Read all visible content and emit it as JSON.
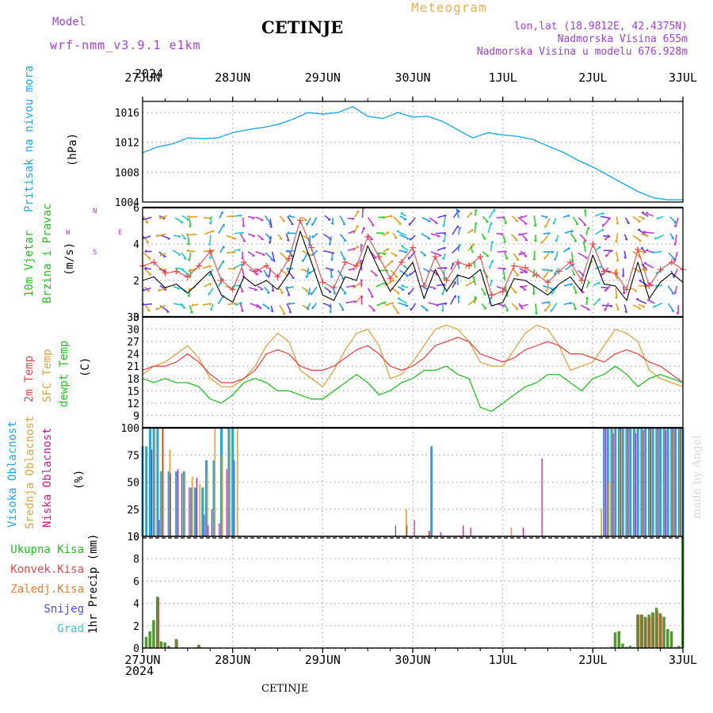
{
  "header": {
    "model_label": "Model",
    "model_name": "wrf-nmm_v3.9.1  e1km",
    "station": "CETINJE",
    "product": "Meteogram",
    "coords": "lon,lat (18.9812E, 42.4375N)",
    "elevation": "Nadmorska Visina 655m",
    "model_elevation": "Nadmorska Visina u modelu 676.928m",
    "footer_station": "CETINJE",
    "credit": "made by Angel"
  },
  "colors": {
    "pressure": "#1ea7e8",
    "temp2m": "#e8474a",
    "sfc": "#dba542",
    "dewpt": "#22c022",
    "high_cloud": "#1ea7e8",
    "mid_cloud": "#e8a020",
    "low_cloud": "#d0158a",
    "total_precip": "#4f9a2a",
    "conv_precip": "#e04040",
    "purple_text": "#a040d8"
  },
  "time_axis": {
    "year": "2024",
    "labels": [
      "27JUN",
      "28JUN",
      "29JUN",
      "30JUN",
      "1JUL",
      "2JUL",
      "3JUL"
    ],
    "step_hours": 1,
    "span_hours": 144
  },
  "chart_data": [
    {
      "type": "line",
      "panel": "pressure",
      "ylabel_main": "Pritisak na nivou mora",
      "ylabel_unit": "(hPa)",
      "ylim": [
        1004,
        1017.5
      ],
      "yticks": [
        1004,
        1008,
        1012,
        1016
      ],
      "x_hours": [
        0,
        4,
        8,
        12,
        16,
        20,
        24,
        28,
        32,
        36,
        40,
        44,
        48,
        52,
        56,
        60,
        64,
        68,
        72,
        76,
        80,
        84,
        88,
        92,
        96,
        100,
        104,
        108,
        112,
        116,
        120,
        124,
        128,
        132,
        136,
        140,
        144
      ],
      "series": [
        {
          "values": [
            1010.6,
            1011.4,
            1011.8,
            1012.6,
            1012.5,
            1012.6,
            1013.3,
            1013.7,
            1014.0,
            1014.4,
            1015.1,
            1016.0,
            1015.8,
            1016.0,
            1016.8,
            1015.5,
            1015.2,
            1016.0,
            1015.4,
            1015.5,
            1014.8,
            1013.7,
            1012.6,
            1013.3,
            1013.0,
            1012.8,
            1012.4,
            1011.5,
            1010.7,
            1009.6,
            1008.7,
            1007.6,
            1006.5,
            1005.4,
            1004.6,
            1004.3,
            1004.3
          ]
        }
      ]
    },
    {
      "type": "line",
      "panel": "wind",
      "ylabel_main": "10m Vjetar",
      "ylabel_sub": "Brzina i Pravac",
      "ylabel_unit": "(m/s)",
      "ylim": [
        0,
        6
      ],
      "yticks": [
        0,
        2,
        4,
        6
      ],
      "compass": {
        "n": "N",
        "e": "E",
        "w": "W",
        "s": "S"
      },
      "x_hours": [
        0,
        3,
        6,
        9,
        12,
        15,
        18,
        21,
        24,
        27,
        30,
        33,
        36,
        39,
        42,
        45,
        48,
        51,
        54,
        57,
        60,
        63,
        66,
        69,
        72,
        75,
        78,
        81,
        84,
        87,
        90,
        93,
        96,
        99,
        102,
        105,
        108,
        111,
        114,
        117,
        120,
        123,
        126,
        129,
        132,
        135,
        138,
        141,
        144
      ],
      "series": [
        {
          "values": [
            2.0,
            2.2,
            1.6,
            1.8,
            1.3,
            1.9,
            2.5,
            1.2,
            0.8,
            2.2,
            1.7,
            2.0,
            1.5,
            2.4,
            4.7,
            3.0,
            1.2,
            0.9,
            2.2,
            2.0,
            3.9,
            2.6,
            1.4,
            2.2,
            3.0,
            1.0,
            2.6,
            1.4,
            2.3,
            2.1,
            2.6,
            0.6,
            0.8,
            2.1,
            2.0,
            1.6,
            1.2,
            1.8,
            2.2,
            1.4,
            3.4,
            1.8,
            1.7,
            0.9,
            3.0,
            1.0,
            1.9,
            2.4,
            1.9
          ]
        },
        {
          "values": [
            2.8,
            3.0,
            2.4,
            2.5,
            2.2,
            2.8,
            3.6,
            2.0,
            1.5,
            3.0,
            2.5,
            2.8,
            2.2,
            3.2,
            5.3,
            3.8,
            1.9,
            1.6,
            3.0,
            2.8,
            4.4,
            3.3,
            2.1,
            3.0,
            3.8,
            1.7,
            3.3,
            2.0,
            3.0,
            2.8,
            3.3,
            1.2,
            1.4,
            2.8,
            2.7,
            2.3,
            1.9,
            2.5,
            3.0,
            2.0,
            4.0,
            2.5,
            2.4,
            1.5,
            3.7,
            1.7,
            2.6,
            3.0,
            2.6
          ]
        }
      ]
    },
    {
      "type": "line",
      "panel": "temperature",
      "ylabel_main": "2m Temp",
      "ylabel_sfc": "SFC Temp",
      "ylabel_dew": "dewpt Temp",
      "ylabel_unit": "(C)",
      "ylim": [
        6,
        33
      ],
      "yticks": [
        9,
        12,
        15,
        18,
        21,
        24,
        27,
        30,
        33
      ],
      "x_hours": [
        0,
        3,
        6,
        9,
        12,
        15,
        18,
        21,
        24,
        27,
        30,
        33,
        36,
        39,
        42,
        45,
        48,
        51,
        54,
        57,
        60,
        63,
        66,
        69,
        72,
        75,
        78,
        81,
        84,
        87,
        90,
        93,
        96,
        99,
        102,
        105,
        108,
        111,
        114,
        117,
        120,
        123,
        126,
        129,
        132,
        135,
        138,
        141,
        144
      ],
      "series": [
        {
          "name": "2m Temp",
          "values": [
            20,
            21,
            21,
            22,
            24,
            22,
            19,
            17,
            17,
            18,
            20,
            24,
            25,
            24,
            21,
            20,
            20,
            21,
            23,
            25,
            26,
            24,
            21,
            20,
            21,
            23,
            26,
            27,
            28,
            27,
            24,
            23,
            22,
            23,
            25,
            26,
            27,
            26,
            24,
            24,
            23,
            22,
            24,
            25,
            24,
            22,
            21,
            19,
            17
          ]
        },
        {
          "name": "SFC Temp",
          "values": [
            19,
            21,
            22,
            24,
            26,
            23,
            18,
            16,
            16,
            18,
            21,
            26,
            29,
            27,
            20,
            18,
            16,
            20,
            25,
            29,
            30,
            26,
            18,
            19,
            22,
            26,
            30,
            31,
            30,
            27,
            22,
            21,
            21,
            25,
            29,
            31,
            30,
            26,
            20,
            21,
            22,
            26,
            30,
            29,
            27,
            20,
            18,
            17,
            16
          ]
        },
        {
          "name": "dewpt Temp",
          "values": [
            18,
            17,
            18,
            17,
            17,
            16,
            13,
            12,
            14,
            17,
            18,
            17,
            15,
            15,
            14,
            13,
            13,
            15,
            17,
            19,
            17,
            14,
            15,
            17,
            18,
            20,
            20,
            21,
            19,
            18,
            11,
            10,
            12,
            14,
            16,
            17,
            19,
            19,
            17,
            15,
            18,
            19,
            21,
            19,
            16,
            18,
            19,
            18,
            17
          ]
        }
      ]
    },
    {
      "type": "bar",
      "panel": "cloud",
      "ylabel_high": "Visoka Oblacnost",
      "ylabel_mid": "Srednja Oblacnost",
      "ylabel_low": "Niska Oblacnost",
      "ylabel_unit": "(%)",
      "ylim": [
        0,
        100
      ],
      "yticks": [
        0,
        25,
        50,
        75,
        100
      ],
      "high": {
        "hours": [
          0,
          1,
          2,
          3,
          4,
          5,
          7,
          9,
          11,
          13,
          14,
          16,
          17,
          19,
          21,
          23,
          24,
          77,
          123,
          124,
          125,
          126,
          127,
          128,
          129,
          130,
          131,
          132,
          133,
          134,
          135,
          136,
          137,
          138,
          139,
          140,
          141,
          142,
          143,
          144
        ],
        "values": [
          83,
          83,
          100,
          100,
          100,
          60,
          60,
          60,
          60,
          45,
          45,
          45,
          70,
          70,
          100,
          100,
          100,
          83,
          100,
          100,
          100,
          100,
          100,
          100,
          100,
          100,
          100,
          100,
          100,
          100,
          100,
          100,
          100,
          100,
          100,
          100,
          100,
          100,
          100,
          100
        ]
      },
      "mid": {
        "hours": [
          3,
          5,
          7,
          9,
          11,
          13,
          15,
          17,
          19,
          21,
          23,
          25,
          70,
          76,
          98,
          122,
          123,
          124,
          125,
          127,
          129,
          131,
          133,
          135,
          137,
          139,
          141,
          143
        ],
        "values": [
          100,
          100,
          80,
          55,
          60,
          55,
          48,
          60,
          100,
          75,
          98,
          100,
          25,
          5,
          8,
          25,
          100,
          50,
          100,
          98,
          100,
          100,
          98,
          100,
          100,
          100,
          98,
          100
        ]
      },
      "low": {
        "hours": [
          2,
          4,
          5,
          7,
          9,
          10,
          12,
          14,
          16,
          17,
          18,
          20,
          22,
          24,
          67,
          70,
          72,
          76,
          79,
          85,
          87,
          101,
          106,
          123,
          125,
          127,
          129,
          131,
          133,
          135,
          137,
          139,
          141,
          143
        ],
        "values": [
          80,
          15,
          100,
          58,
          62,
          58,
          45,
          54,
          20,
          10,
          25,
          12,
          62,
          70,
          10,
          10,
          15,
          5,
          4,
          10,
          8,
          8,
          72,
          100,
          95,
          100,
          100,
          95,
          98,
          100,
          100,
          98,
          100,
          100
        ]
      }
    },
    {
      "type": "bar",
      "panel": "precip",
      "ylabel_total": "Ukupna Kisa",
      "ylabel_conv": "Konvek.Kisa",
      "ylabel_frz": "Zaledj.Kisa",
      "ylabel_snow": "Snijeg",
      "ylabel_hail": "Grad",
      "ylabel_unit": "1hr Precip (mm)",
      "ylim": [
        0,
        10
      ],
      "yticks": [
        0,
        2,
        4,
        6,
        8,
        10
      ],
      "total": {
        "hours": [
          1,
          2,
          3,
          4,
          5,
          6,
          7,
          9,
          15,
          125,
          126,
          127,
          128,
          129,
          130,
          131,
          132,
          133,
          134,
          135,
          136,
          137,
          138,
          139,
          140,
          141,
          142,
          143,
          144
        ],
        "values": [
          1.0,
          1.5,
          2.5,
          4.6,
          0.6,
          0.5,
          0.2,
          0.8,
          0.3,
          0.1,
          1.4,
          1.5,
          0.4,
          0.1,
          0.2,
          0.1,
          3.0,
          3.0,
          2.8,
          3.0,
          3.2,
          3.6,
          3.1,
          2.8,
          1.7,
          1.5,
          0.1,
          0.2,
          10.0
        ]
      },
      "conv": {
        "hours": [
          4,
          9,
          15,
          132,
          133,
          134,
          135,
          136,
          137,
          138
        ],
        "values": [
          4.5,
          0.7,
          0.2,
          3.0,
          3.0,
          2.7,
          2.8,
          3.1,
          3.3,
          2.9
        ]
      }
    }
  ]
}
